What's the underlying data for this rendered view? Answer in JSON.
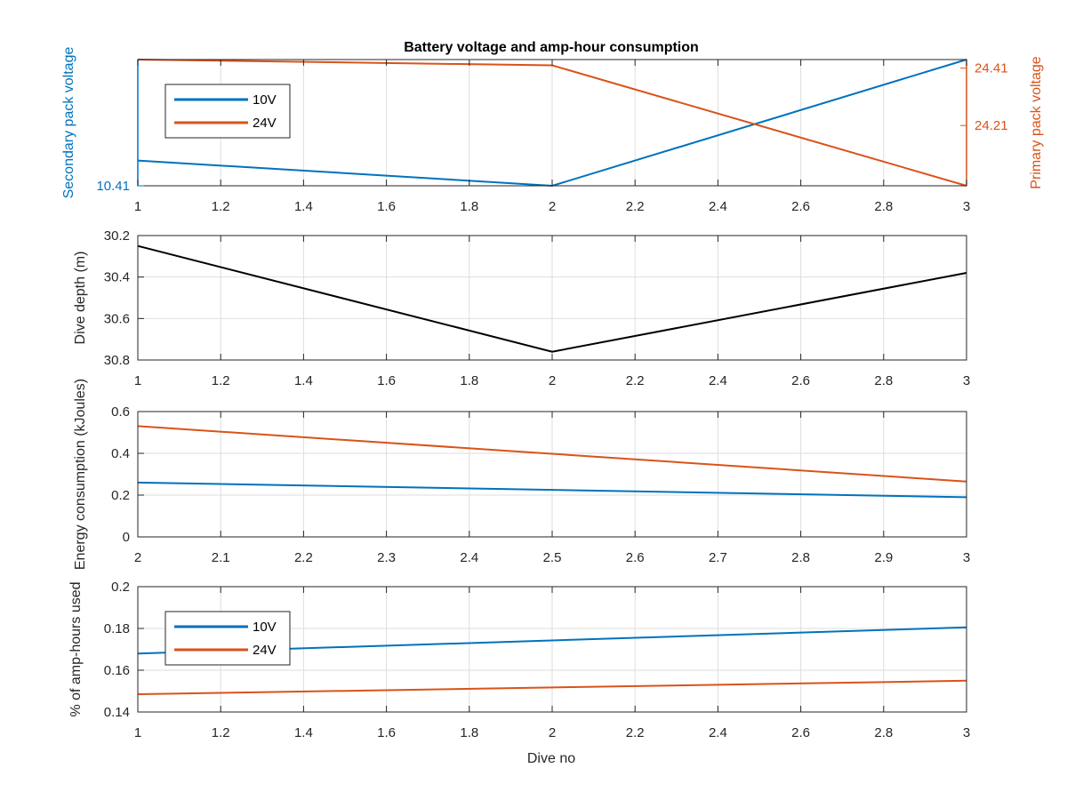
{
  "figure": {
    "title": "Battery voltage and amp-hour consumption",
    "xlabel": "Dive no"
  },
  "colors": {
    "blue": "#0072BD",
    "orange": "#D95319",
    "black": "#000000",
    "axis": "#262626",
    "grid": "#dedede"
  },
  "chart_data": [
    {
      "type": "line",
      "title": "Battery voltage and amp-hour consumption",
      "xlabel": "",
      "ylabel": "Secondary pack voltage",
      "y2label": "Primary pack voltage",
      "xlim": [
        1,
        3
      ],
      "xticks": [
        1,
        1.2,
        1.4,
        1.6,
        1.8,
        2,
        2.2,
        2.4,
        2.6,
        2.8,
        3
      ],
      "xtick_labels": [
        "1",
        "1.2",
        "1.4",
        "1.6",
        "1.8",
        "2",
        "2.2",
        "2.4",
        "2.6",
        "2.8",
        "3"
      ],
      "ylim": [
        10.41,
        10.46
      ],
      "yticks": [
        10.41
      ],
      "ytick_labels": [
        "10.41"
      ],
      "y2lim": [
        24.0,
        24.44
      ],
      "y2ticks": [
        24.21,
        24.41
      ],
      "y2tick_labels": [
        "24.21",
        "24.41"
      ],
      "grid": true,
      "legend": {
        "position": "top-left",
        "entries": [
          "10V",
          "24V"
        ]
      },
      "series": [
        {
          "name": "10V",
          "axis": "left",
          "color": "blue",
          "x": [
            1,
            2,
            3
          ],
          "y": [
            10.42,
            10.41,
            10.46
          ]
        },
        {
          "name": "24V",
          "axis": "right",
          "color": "orange",
          "x": [
            1,
            2,
            3
          ],
          "y": [
            24.44,
            24.42,
            24.0
          ]
        }
      ]
    },
    {
      "type": "line",
      "title": "",
      "xlabel": "",
      "ylabel": "Dive depth (m)",
      "xlim": [
        1,
        3
      ],
      "xticks": [
        1,
        1.2,
        1.4,
        1.6,
        1.8,
        2,
        2.2,
        2.4,
        2.6,
        2.8,
        3
      ],
      "xtick_labels": [
        "1",
        "1.2",
        "1.4",
        "1.6",
        "1.8",
        "2",
        "2.2",
        "2.4",
        "2.6",
        "2.8",
        "3"
      ],
      "ylim": [
        30.2,
        30.8
      ],
      "y_reversed": true,
      "yticks": [
        30.2,
        30.4,
        30.6,
        30.8
      ],
      "ytick_labels": [
        "30.2",
        "30.4",
        "30.6",
        "30.8"
      ],
      "grid": true,
      "series": [
        {
          "color": "black",
          "x": [
            1,
            2,
            3
          ],
          "y": [
            30.25,
            30.76,
            30.38
          ]
        }
      ]
    },
    {
      "type": "line",
      "title": "",
      "xlabel": "",
      "ylabel": "Energy consumption (kJoules)",
      "xlim": [
        2,
        3
      ],
      "xticks": [
        2,
        2.1,
        2.2,
        2.3,
        2.4,
        2.5,
        2.6,
        2.7,
        2.8,
        2.9,
        3
      ],
      "xtick_labels": [
        "2",
        "2.1",
        "2.2",
        "2.3",
        "2.4",
        "2.5",
        "2.6",
        "2.7",
        "2.8",
        "2.9",
        "3"
      ],
      "ylim": [
        0,
        0.6
      ],
      "yticks": [
        0,
        0.2,
        0.4,
        0.6
      ],
      "ytick_labels": [
        "0",
        "0.2",
        "0.4",
        "0.6"
      ],
      "grid": true,
      "series": [
        {
          "color": "orange",
          "x": [
            2,
            3
          ],
          "y": [
            0.53,
            0.265
          ]
        },
        {
          "color": "blue",
          "x": [
            2,
            3
          ],
          "y": [
            0.26,
            0.19
          ]
        }
      ]
    },
    {
      "type": "line",
      "title": "",
      "xlabel": "Dive no",
      "ylabel": "% of amp-hours used",
      "xlim": [
        1,
        3
      ],
      "xticks": [
        1,
        1.2,
        1.4,
        1.6,
        1.8,
        2,
        2.2,
        2.4,
        2.6,
        2.8,
        3
      ],
      "xtick_labels": [
        "1",
        "1.2",
        "1.4",
        "1.6",
        "1.8",
        "2",
        "2.2",
        "2.4",
        "2.6",
        "2.8",
        "3"
      ],
      "ylim": [
        0.14,
        0.2
      ],
      "yticks": [
        0.14,
        0.16,
        0.18,
        0.2
      ],
      "ytick_labels": [
        "0.14",
        "0.16",
        "0.18",
        "0.2"
      ],
      "grid": true,
      "legend": {
        "position": "center-left",
        "entries": [
          "10V",
          "24V"
        ]
      },
      "series": [
        {
          "name": "10V",
          "color": "blue",
          "x": [
            1,
            3
          ],
          "y": [
            0.168,
            0.1805
          ]
        },
        {
          "name": "24V",
          "color": "orange",
          "x": [
            1,
            3
          ],
          "y": [
            0.1485,
            0.155
          ]
        }
      ]
    }
  ]
}
